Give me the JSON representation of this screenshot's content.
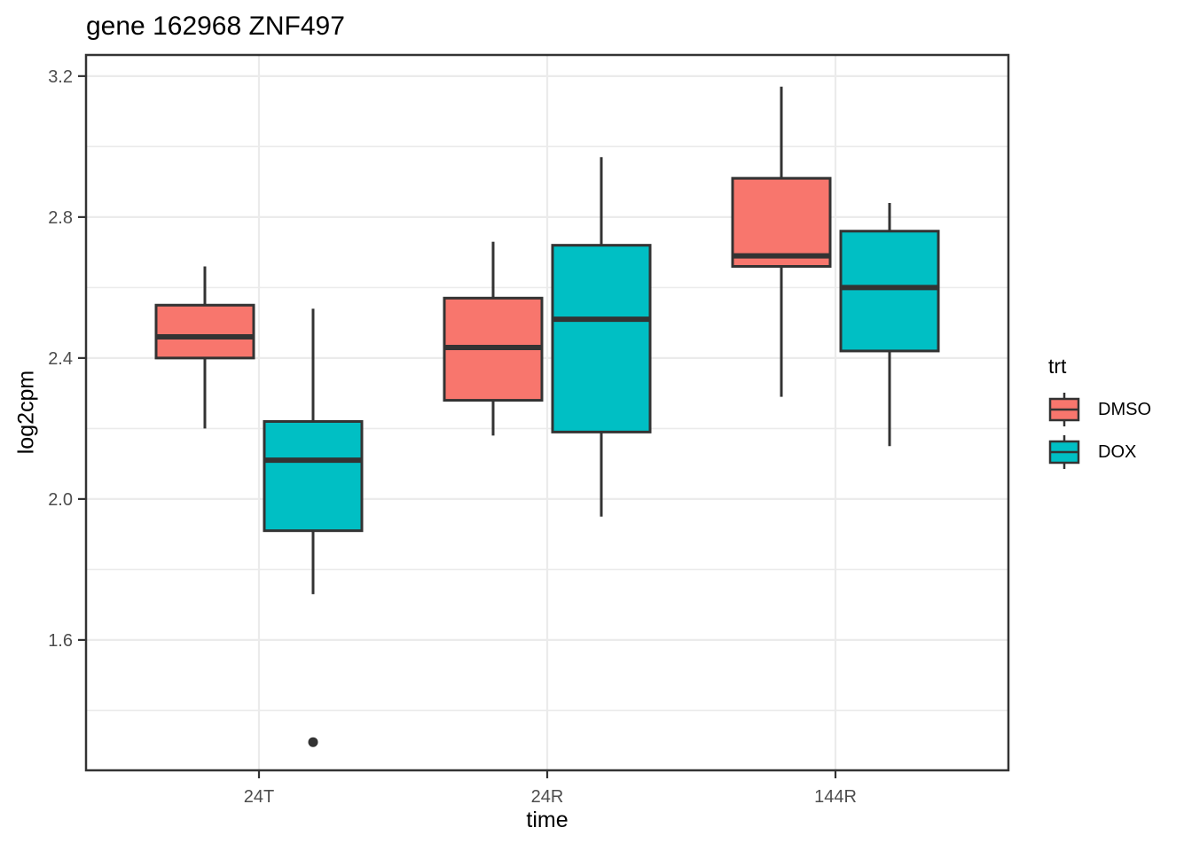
{
  "chart_data": {
    "type": "boxplot",
    "title": "gene 162968 ZNF497",
    "xlabel": "time",
    "ylabel": "log2cpm",
    "categories": [
      "24T",
      "24R",
      "144R"
    ],
    "y_axis": {
      "domain": [
        1.23,
        3.26
      ],
      "major_ticks": [
        1.6,
        2.0,
        2.4,
        2.8,
        3.2
      ],
      "major_tick_labels": [
        "1.6",
        "2.0",
        "2.4",
        "2.8",
        "3.2"
      ],
      "minor_ticks": [
        1.4,
        1.8,
        2.2,
        2.6,
        3.0
      ],
      "grid": true
    },
    "legend": {
      "title": "trt",
      "position": "right"
    },
    "series": [
      {
        "name": "DMSO",
        "color": "#F8766D",
        "boxes": [
          {
            "category": "24T",
            "whisker_low": 2.2,
            "q1": 2.4,
            "median": 2.46,
            "q3": 2.55,
            "whisker_high": 2.66,
            "outliers": []
          },
          {
            "category": "24R",
            "whisker_low": 2.18,
            "q1": 2.28,
            "median": 2.43,
            "q3": 2.57,
            "whisker_high": 2.73,
            "outliers": []
          },
          {
            "category": "144R",
            "whisker_low": 2.29,
            "q1": 2.66,
            "median": 2.69,
            "q3": 2.91,
            "whisker_high": 3.17,
            "outliers": []
          }
        ]
      },
      {
        "name": "DOX",
        "color": "#00BFC4",
        "boxes": [
          {
            "category": "24T",
            "whisker_low": 1.73,
            "q1": 1.91,
            "median": 2.11,
            "q3": 2.22,
            "whisker_high": 2.54,
            "outliers": [
              1.31
            ]
          },
          {
            "category": "24R",
            "whisker_low": 1.95,
            "q1": 2.19,
            "median": 2.51,
            "q3": 2.72,
            "whisker_high": 2.97,
            "outliers": []
          },
          {
            "category": "144R",
            "whisker_low": 2.15,
            "q1": 2.42,
            "median": 2.6,
            "q3": 2.76,
            "whisker_high": 2.84,
            "outliers": []
          }
        ]
      }
    ],
    "style": {
      "box_stroke": "#333333",
      "outlier_color": "#333333",
      "panel_border": "#333333",
      "grid_color": "#EBEBEB",
      "tick_label_color": "#4D4D4D",
      "text_color": "#000000",
      "background": "#FFFFFF"
    }
  }
}
